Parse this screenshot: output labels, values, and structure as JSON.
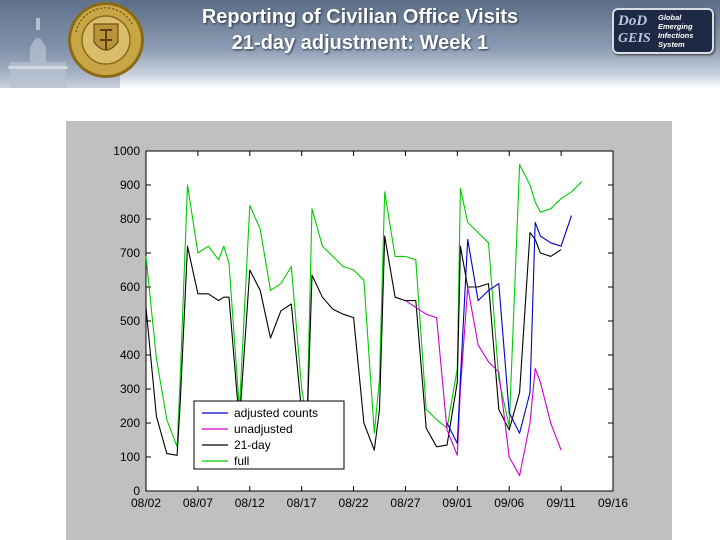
{
  "header": {
    "title_line1": "Reporting of Civilian Office Visits",
    "title_line2": "21-day adjustment: Week 1",
    "seal_icon": "university-seal-icon",
    "logo": {
      "abbrev_top": "DoD",
      "abbrev_bottom": "GEIS",
      "words": [
        "Global",
        "Emerging",
        "Infections",
        "System"
      ]
    }
  },
  "chart_data": {
    "type": "line",
    "title": "",
    "xlabel": "",
    "ylabel": "",
    "x_ticks": [
      {
        "day": 0,
        "label": "08/02"
      },
      {
        "day": 5,
        "label": "08/07"
      },
      {
        "day": 10,
        "label": "08/12"
      },
      {
        "day": 15,
        "label": "08/17"
      },
      {
        "day": 20,
        "label": "08/22"
      },
      {
        "day": 25,
        "label": "08/27"
      },
      {
        "day": 30,
        "label": "09/01"
      },
      {
        "day": 35,
        "label": "09/06"
      },
      {
        "day": 40,
        "label": "09/11"
      },
      {
        "day": 45,
        "label": "09/16"
      }
    ],
    "xlim": [
      0,
      45
    ],
    "ylim": [
      0,
      1000
    ],
    "y_ticks": [
      0,
      100,
      200,
      300,
      400,
      500,
      600,
      700,
      800,
      900,
      1000
    ],
    "grid": false,
    "legend_position": "lower-left",
    "series": [
      {
        "name": "full",
        "color": "#00cc00",
        "x": [
          0,
          1,
          2,
          3,
          3.3,
          4,
          5,
          6,
          7,
          7.5,
          8,
          9,
          10,
          11,
          12,
          13,
          14,
          15,
          15.5,
          16,
          17,
          18,
          19,
          20,
          21,
          22,
          22.5,
          23,
          24,
          25,
          26,
          27,
          28,
          29,
          30,
          30.3,
          31,
          32,
          33,
          34,
          35,
          36,
          37,
          37.5,
          38,
          39,
          40,
          41,
          42
        ],
        "y": [
          690,
          390,
          210,
          130,
          330,
          900,
          700,
          720,
          680,
          720,
          670,
          240,
          840,
          770,
          590,
          610,
          660,
          300,
          200,
          830,
          720,
          690,
          660,
          650,
          620,
          170,
          330,
          880,
          690,
          690,
          680,
          240,
          210,
          185,
          360,
          890,
          790,
          760,
          730,
          330,
          190,
          960,
          900,
          850,
          820,
          830,
          860,
          880,
          910
        ]
      },
      {
        "name": "21-day",
        "color": "#000000",
        "x": [
          0,
          1,
          2,
          3,
          3.3,
          4,
          5,
          6,
          7,
          7.5,
          8,
          9,
          10,
          11,
          12,
          13,
          14,
          15,
          15.5,
          16,
          17,
          18,
          19,
          20,
          21,
          22,
          22.5,
          23,
          24,
          25,
          26,
          27,
          28,
          29,
          30,
          30.3,
          31,
          32,
          33,
          34,
          35,
          36,
          37,
          37.5,
          38,
          39,
          40
        ],
        "y": [
          540,
          220,
          110,
          105,
          260,
          720,
          580,
          580,
          560,
          570,
          570,
          200,
          650,
          590,
          450,
          530,
          550,
          230,
          180,
          635,
          570,
          535,
          520,
          510,
          200,
          120,
          240,
          750,
          570,
          560,
          560,
          185,
          130,
          135,
          320,
          720,
          600,
          600,
          610,
          240,
          180,
          290,
          760,
          740,
          700,
          690,
          710
        ]
      },
      {
        "name": "unadjusted",
        "color": "#cc00cc",
        "x": [
          25,
          26,
          27,
          28,
          29,
          30,
          30.3,
          31,
          32,
          33,
          34,
          35,
          36,
          37,
          37.5,
          38,
          39,
          40
        ],
        "y": [
          560,
          540,
          520,
          510,
          180,
          105,
          300,
          600,
          430,
          380,
          350,
          100,
          45,
          200,
          360,
          320,
          200,
          120
        ]
      },
      {
        "name": "adjusted counts",
        "color": "#0000cc",
        "x": [
          29,
          30,
          30.3,
          31,
          32,
          33,
          34,
          35,
          36,
          37,
          37.5,
          38,
          39,
          40,
          41
        ],
        "y": [
          200,
          140,
          330,
          740,
          560,
          590,
          610,
          230,
          170,
          290,
          790,
          750,
          730,
          720,
          810
        ]
      }
    ],
    "legend_order": [
      "adjusted counts",
      "unadjusted",
      "21-day",
      "full"
    ]
  }
}
